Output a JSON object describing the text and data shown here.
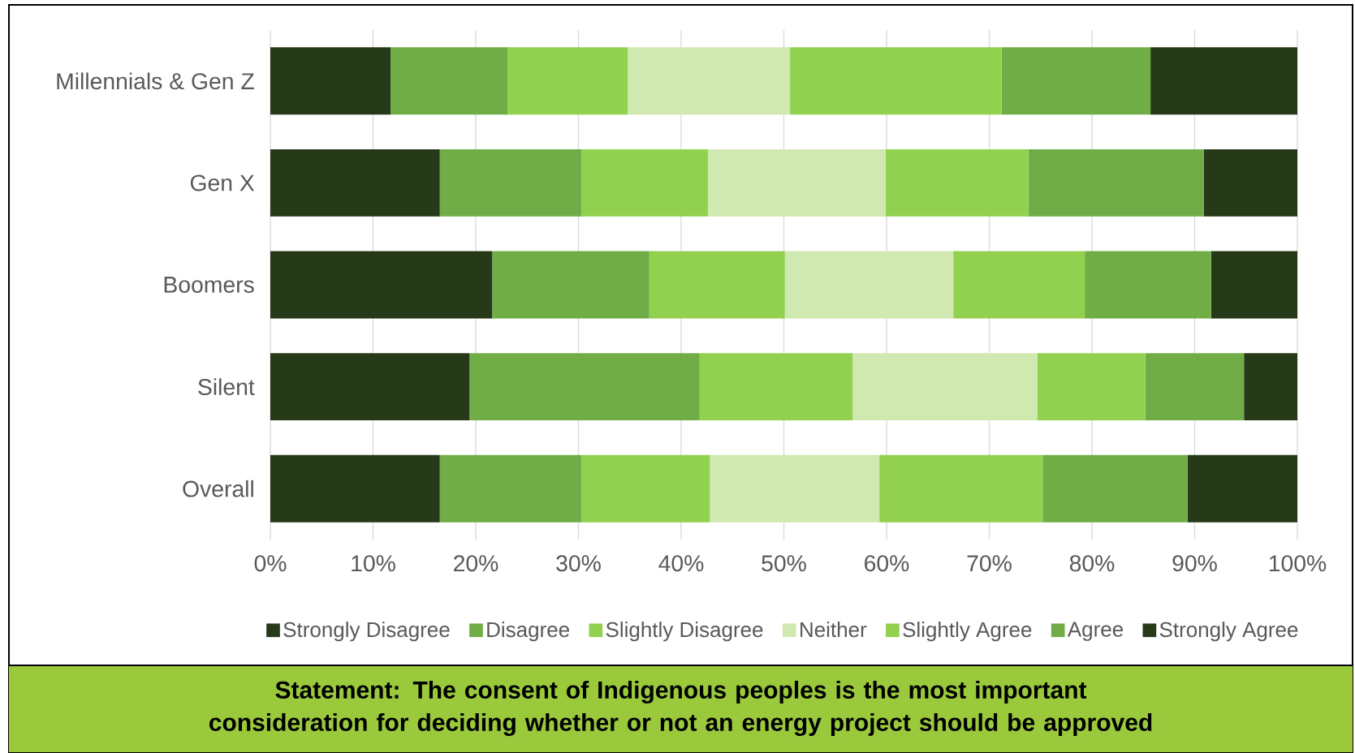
{
  "chart_data": {
    "type": "bar",
    "orientation": "horizontal",
    "stacked": true,
    "title": "Statement: The consent of Indigenous peoples is the most important consideration for deciding whether or not an energy project should be approved",
    "categories": [
      "Millennials & Gen Z",
      "Gen X",
      "Boomers",
      "Silent",
      "Overall"
    ],
    "series": [
      {
        "name": "Strongly Disagree",
        "color": "#263a19",
        "values": [
          11.7,
          16.5,
          21.6,
          19.4,
          16.5
        ]
      },
      {
        "name": "Disagree",
        "color": "#70ad47",
        "values": [
          11.4,
          13.8,
          15.3,
          22.4,
          13.8
        ]
      },
      {
        "name": "Slightly Disagree",
        "color": "#92d050",
        "values": [
          11.7,
          12.3,
          13.2,
          14.9,
          12.5
        ]
      },
      {
        "name": "Neither",
        "color": "#d0e9b0",
        "values": [
          15.8,
          17.3,
          16.4,
          18.0,
          16.5
        ]
      },
      {
        "name": "Slightly Agree",
        "color": "#92d050",
        "values": [
          20.6,
          13.9,
          12.8,
          10.5,
          15.9
        ]
      },
      {
        "name": "Agree",
        "color": "#70ad47",
        "values": [
          14.5,
          17.1,
          12.3,
          9.6,
          14.1
        ]
      },
      {
        "name": "Strongly Agree",
        "color": "#263a19",
        "values": [
          14.3,
          9.1,
          8.4,
          5.2,
          10.7
        ]
      }
    ],
    "xlim": [
      0,
      100
    ],
    "xticks": [
      {
        "value": 0,
        "label": "0%"
      },
      {
        "value": 10,
        "label": "10%"
      },
      {
        "value": 20,
        "label": "20%"
      },
      {
        "value": 30,
        "label": "30%"
      },
      {
        "value": 40,
        "label": "40%"
      },
      {
        "value": 50,
        "label": "50%"
      },
      {
        "value": 60,
        "label": "60%"
      },
      {
        "value": 70,
        "label": "70%"
      },
      {
        "value": 80,
        "label": "80%"
      },
      {
        "value": 90,
        "label": "90%"
      },
      {
        "value": 100,
        "label": "100%"
      }
    ],
    "grid": "x",
    "legend": "bottom"
  }
}
